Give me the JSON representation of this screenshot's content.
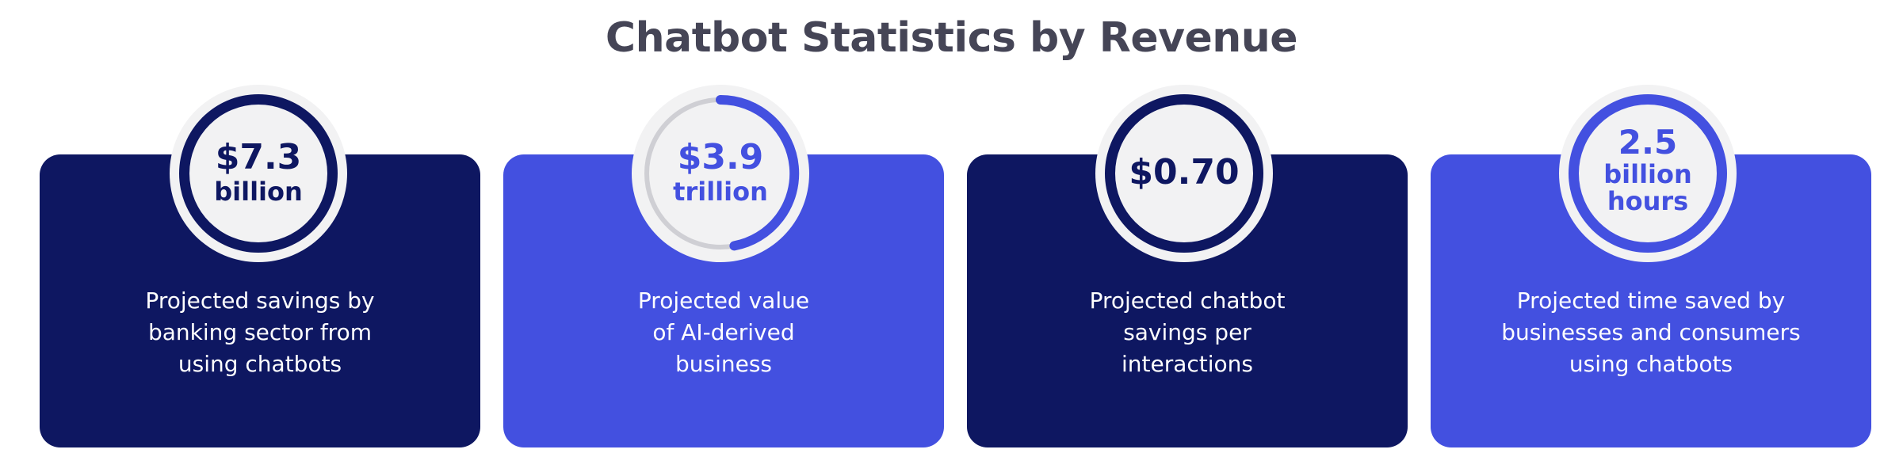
{
  "title": "Chatbot Statistics by Revenue",
  "colors": {
    "navy": "#0e1761",
    "blue": "#4350e0",
    "ring_track": "#cfcfd4",
    "badge_fill": "#f2f2f3",
    "title": "#454556"
  },
  "cards": [
    {
      "value_line1": "$7.3",
      "value_line2": "billion",
      "description": [
        "Projected savings by",
        "banking sector from",
        "using chatbots"
      ]
    },
    {
      "value_line1": "$3.9",
      "value_line2": "trillion",
      "description": [
        "Projected value",
        "of AI-derived",
        "business"
      ]
    },
    {
      "value_line1": "$0.70",
      "description": [
        "Projected chatbot",
        "savings per",
        "interactions"
      ]
    },
    {
      "value_line1": "2.5",
      "value_line2": "billion",
      "value_line3": "hours",
      "description": [
        "Projected time saved by",
        "businesses and consumers",
        "using chatbots"
      ]
    }
  ]
}
